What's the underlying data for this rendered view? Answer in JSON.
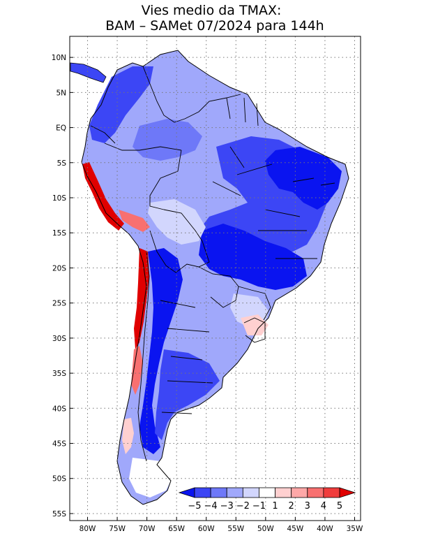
{
  "title": {
    "line1": "Vies medio da TMAX:",
    "line2": "BAM – SAMet 07/2024  para 144h"
  },
  "map": {
    "lon_range": [
      -83,
      -34
    ],
    "lat_range": [
      -56,
      13
    ],
    "grid": "dotted",
    "lat_ticks": [
      {
        "value": 10,
        "label": "10N"
      },
      {
        "value": 5,
        "label": "5N"
      },
      {
        "value": 0,
        "label": "EQ"
      },
      {
        "value": -5,
        "label": "5S"
      },
      {
        "value": -10,
        "label": "10S"
      },
      {
        "value": -15,
        "label": "15S"
      },
      {
        "value": -20,
        "label": "20S"
      },
      {
        "value": -25,
        "label": "25S"
      },
      {
        "value": -30,
        "label": "30S"
      },
      {
        "value": -35,
        "label": "35S"
      },
      {
        "value": -40,
        "label": "40S"
      },
      {
        "value": -45,
        "label": "45S"
      },
      {
        "value": -50,
        "label": "50S"
      },
      {
        "value": -55,
        "label": "55S"
      }
    ],
    "lon_ticks": [
      {
        "value": -80,
        "label": "80W"
      },
      {
        "value": -75,
        "label": "75W"
      },
      {
        "value": -70,
        "label": "70W"
      },
      {
        "value": -65,
        "label": "65W"
      },
      {
        "value": -60,
        "label": "60W"
      },
      {
        "value": -55,
        "label": "55W"
      },
      {
        "value": -50,
        "label": "50W"
      },
      {
        "value": -45,
        "label": "45W"
      },
      {
        "value": -40,
        "label": "40W"
      },
      {
        "value": -35,
        "label": "35W"
      }
    ]
  },
  "colorbar": {
    "bins": [
      "#0a14f0",
      "#3c46f5",
      "#6e78f8",
      "#a0a8fb",
      "#d2d6fd",
      "#ffffff",
      "#ffd0d0",
      "#ffa8a8",
      "#f87070",
      "#f03c3c",
      "#e00000"
    ],
    "labels": [
      "−5",
      "−4",
      "−3",
      "−2",
      "−1",
      "1",
      "2",
      "3",
      "4",
      "5"
    ]
  },
  "colors": {
    "strong_cold": "#0a14f0",
    "cold": "#3c46f5",
    "mild_cold": "#6e78f8",
    "light_cold": "#a0a8fb",
    "very_light_cold": "#d2d6fd",
    "warm": "#f87070",
    "hot": "#e00000",
    "border": "#000000"
  }
}
